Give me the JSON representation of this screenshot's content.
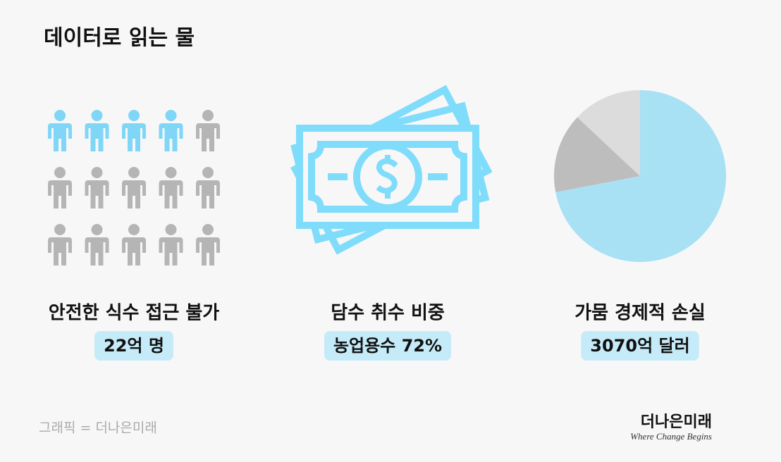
{
  "header": {
    "title": "데이터로 읽는 물"
  },
  "people_grid": {
    "rows": 3,
    "cols": 5,
    "highlighted": 4,
    "color": "#b5b5b5",
    "highlight_color": "#7fd6f7"
  },
  "chart_data": {
    "type": "pie",
    "values": [
      72,
      15,
      13
    ],
    "colors": [
      "#a8e1f4",
      "#bdbdbd",
      "#dcdcdc"
    ]
  },
  "panels": [
    {
      "label": "안전한 식수 접근 불가",
      "value": "22억 명"
    },
    {
      "label": "담수 취수 비중",
      "value": "농업용수 72%"
    },
    {
      "label": "가뭄 경제적 손실",
      "value": "3070억 달러"
    }
  ],
  "footer": {
    "credit": "그래픽 = 더나은미래",
    "logo": "더나은미래",
    "tagline": "Where Change Begins"
  }
}
